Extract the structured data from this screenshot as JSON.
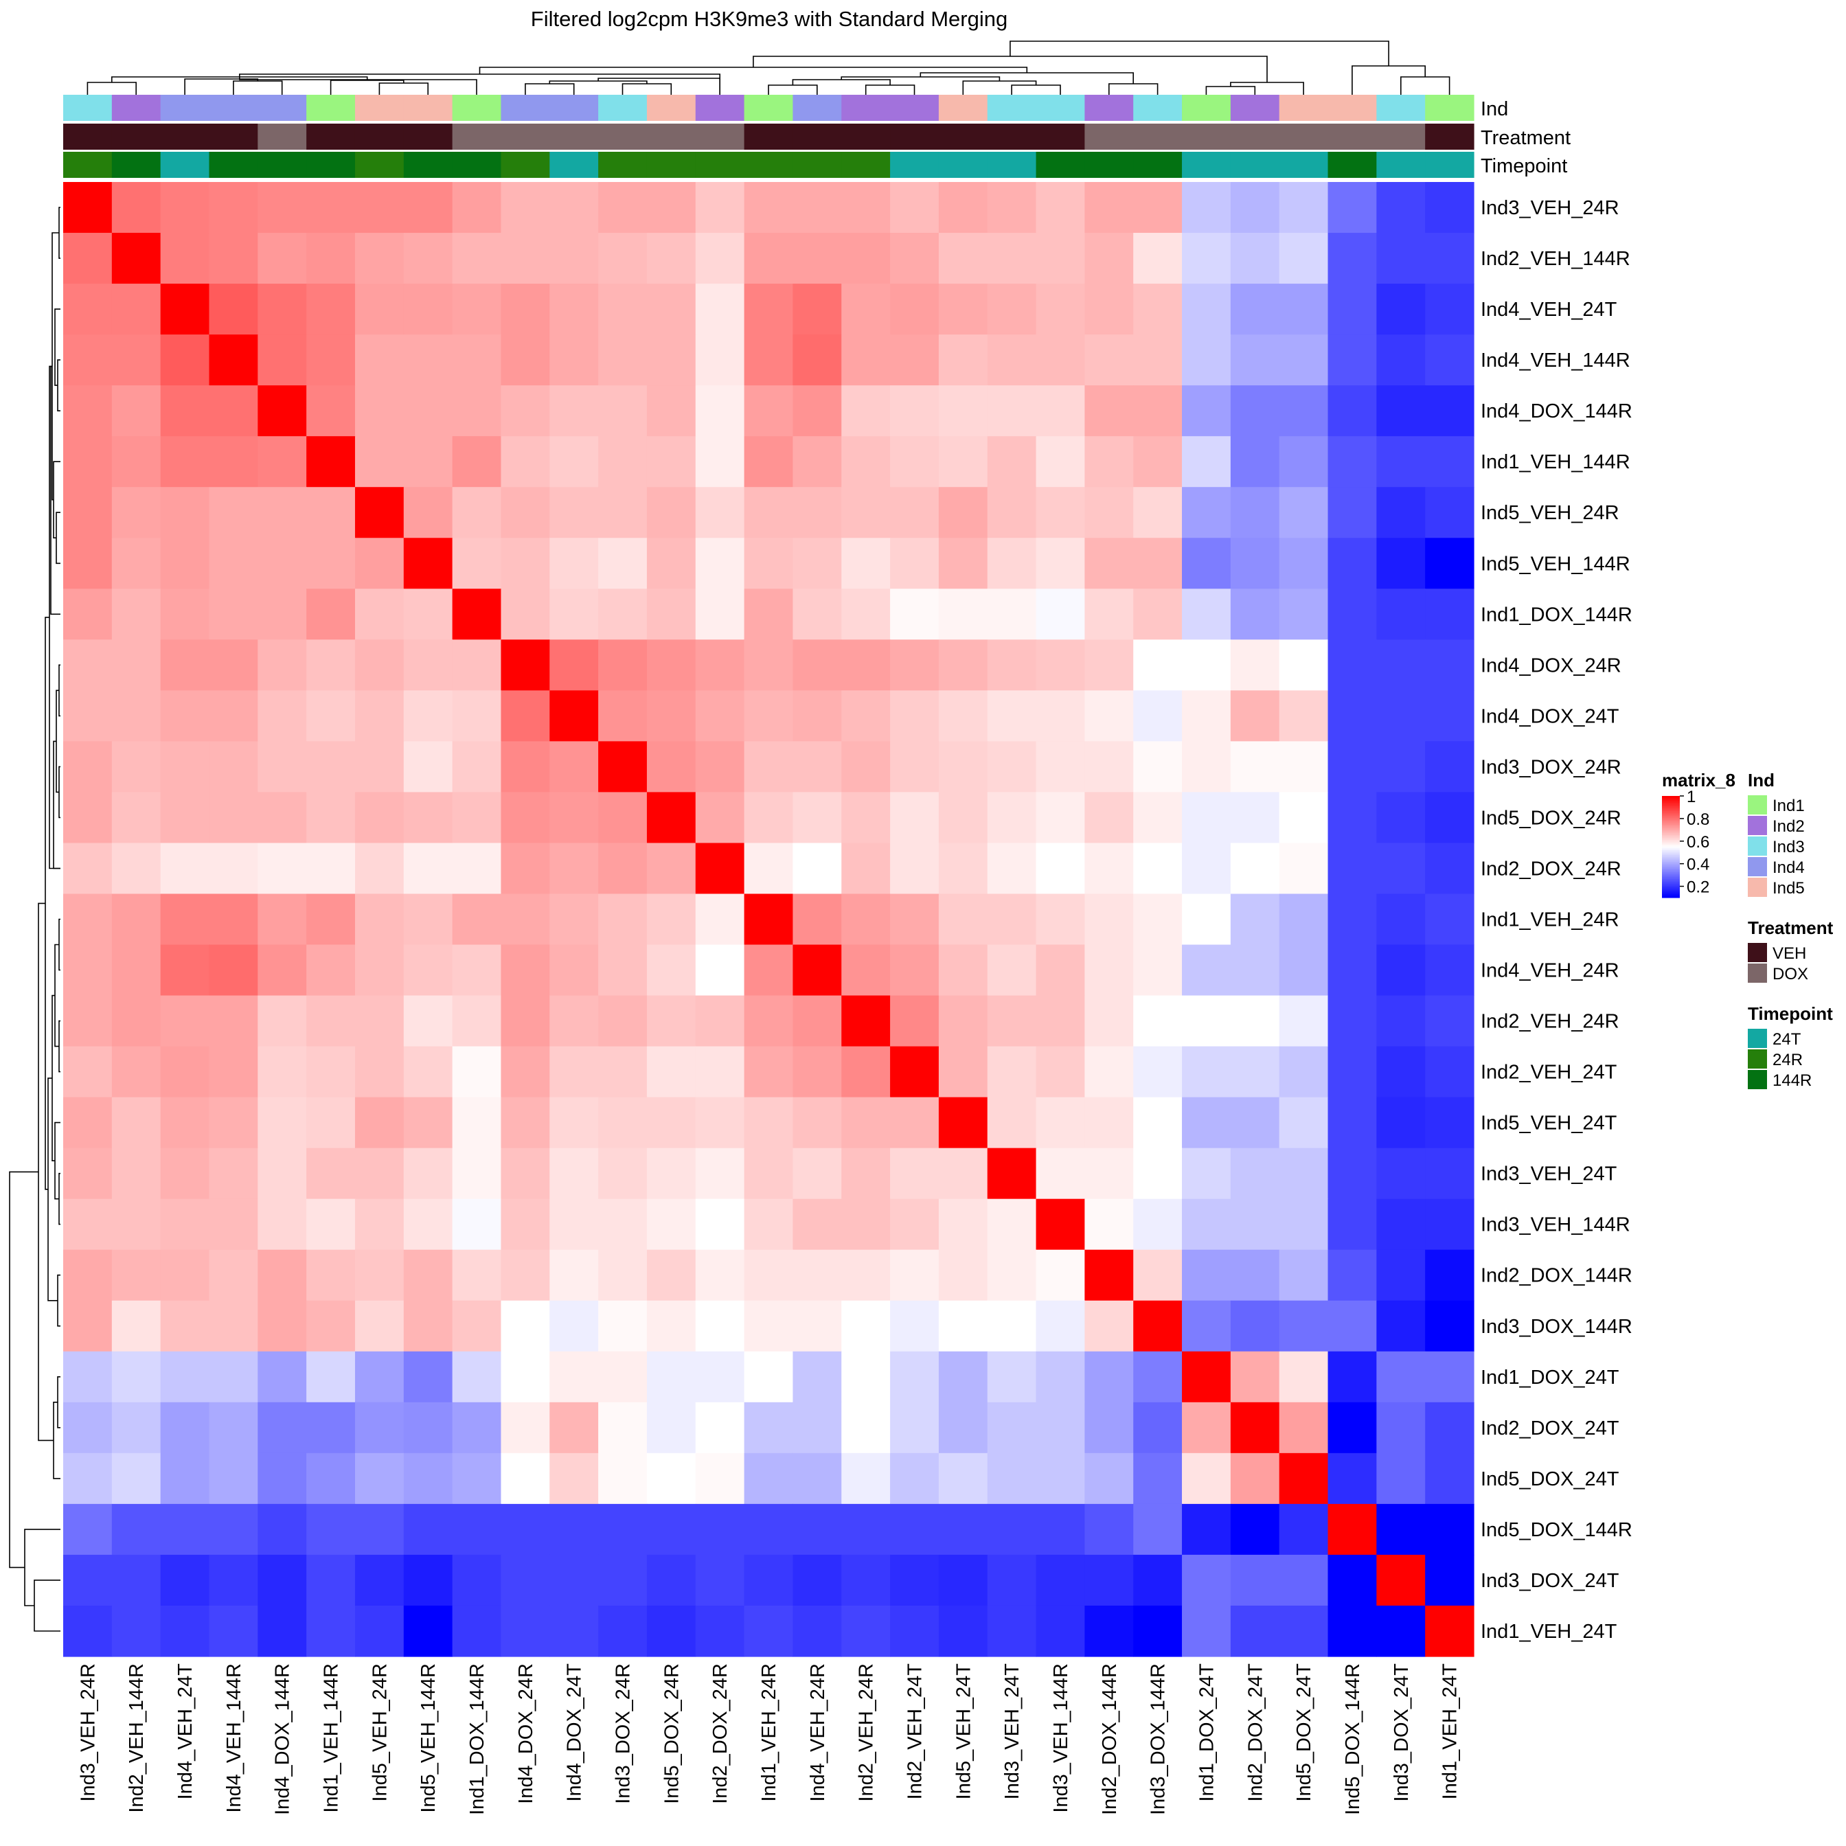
{
  "chart_data": {
    "type": "heatmap",
    "title": "Filtered log2cpm H3K9me3 with Standard Merging",
    "samples": [
      "Ind3_VEH_24R",
      "Ind2_VEH_144R",
      "Ind4_VEH_24T",
      "Ind4_VEH_144R",
      "Ind4_DOX_144R",
      "Ind1_VEH_144R",
      "Ind5_VEH_24R",
      "Ind5_VEH_144R",
      "Ind1_DOX_144R",
      "Ind4_DOX_24R",
      "Ind4_DOX_24T",
      "Ind3_DOX_24R",
      "Ind5_DOX_24R",
      "Ind2_DOX_24R",
      "Ind1_VEH_24R",
      "Ind4_VEH_24R",
      "Ind2_VEH_24R",
      "Ind2_VEH_24T",
      "Ind5_VEH_24T",
      "Ind3_VEH_24T",
      "Ind3_VEH_144R",
      "Ind2_DOX_144R",
      "Ind3_DOX_144R",
      "Ind1_DOX_24T",
      "Ind2_DOX_24T",
      "Ind5_DOX_24T",
      "Ind5_DOX_144R",
      "Ind3_DOX_24T",
      "Ind1_VEH_24T"
    ],
    "values": [
      [
        1.0,
        0.8,
        0.78,
        0.77,
        0.76,
        0.76,
        0.76,
        0.76,
        0.72,
        0.68,
        0.68,
        0.7,
        0.7,
        0.65,
        0.7,
        0.7,
        0.7,
        0.67,
        0.7,
        0.69,
        0.66,
        0.7,
        0.7,
        0.45,
        0.42,
        0.45,
        0.3,
        0.22,
        0.2
      ],
      [
        0.8,
        1.0,
        0.78,
        0.77,
        0.73,
        0.74,
        0.71,
        0.7,
        0.68,
        0.68,
        0.68,
        0.67,
        0.66,
        0.62,
        0.72,
        0.72,
        0.72,
        0.7,
        0.66,
        0.66,
        0.66,
        0.68,
        0.6,
        0.48,
        0.45,
        0.48,
        0.25,
        0.22,
        0.22
      ],
      [
        0.78,
        0.78,
        1.0,
        0.84,
        0.8,
        0.78,
        0.72,
        0.72,
        0.71,
        0.73,
        0.7,
        0.68,
        0.68,
        0.59,
        0.77,
        0.8,
        0.71,
        0.72,
        0.7,
        0.69,
        0.67,
        0.68,
        0.66,
        0.45,
        0.38,
        0.38,
        0.25,
        0.18,
        0.2
      ],
      [
        0.77,
        0.77,
        0.84,
        1.0,
        0.8,
        0.78,
        0.7,
        0.7,
        0.7,
        0.73,
        0.7,
        0.68,
        0.68,
        0.59,
        0.77,
        0.81,
        0.71,
        0.71,
        0.66,
        0.67,
        0.67,
        0.66,
        0.66,
        0.45,
        0.4,
        0.4,
        0.25,
        0.2,
        0.22
      ],
      [
        0.76,
        0.73,
        0.8,
        0.8,
        1.0,
        0.77,
        0.7,
        0.7,
        0.7,
        0.68,
        0.66,
        0.66,
        0.68,
        0.58,
        0.72,
        0.74,
        0.64,
        0.63,
        0.62,
        0.62,
        0.62,
        0.7,
        0.7,
        0.38,
        0.32,
        0.32,
        0.22,
        0.17,
        0.17
      ],
      [
        0.76,
        0.74,
        0.78,
        0.78,
        0.77,
        1.0,
        0.7,
        0.7,
        0.74,
        0.66,
        0.64,
        0.66,
        0.66,
        0.58,
        0.74,
        0.7,
        0.66,
        0.64,
        0.63,
        0.66,
        0.6,
        0.66,
        0.68,
        0.48,
        0.32,
        0.35,
        0.25,
        0.22,
        0.22
      ],
      [
        0.76,
        0.71,
        0.72,
        0.7,
        0.7,
        0.7,
        1.0,
        0.72,
        0.66,
        0.68,
        0.66,
        0.66,
        0.68,
        0.62,
        0.67,
        0.67,
        0.66,
        0.66,
        0.7,
        0.66,
        0.64,
        0.65,
        0.62,
        0.38,
        0.36,
        0.4,
        0.25,
        0.18,
        0.2
      ],
      [
        0.76,
        0.7,
        0.72,
        0.7,
        0.7,
        0.7,
        0.72,
        1.0,
        0.65,
        0.66,
        0.62,
        0.6,
        0.67,
        0.58,
        0.66,
        0.65,
        0.6,
        0.63,
        0.68,
        0.62,
        0.6,
        0.68,
        0.68,
        0.32,
        0.35,
        0.38,
        0.22,
        0.15,
        0.08
      ],
      [
        0.72,
        0.68,
        0.71,
        0.7,
        0.7,
        0.74,
        0.66,
        0.65,
        1.0,
        0.66,
        0.63,
        0.64,
        0.66,
        0.58,
        0.7,
        0.64,
        0.62,
        0.56,
        0.57,
        0.57,
        0.54,
        0.62,
        0.65,
        0.48,
        0.38,
        0.4,
        0.22,
        0.2,
        0.2
      ],
      [
        0.68,
        0.68,
        0.73,
        0.73,
        0.68,
        0.66,
        0.68,
        0.66,
        0.66,
        1.0,
        0.8,
        0.76,
        0.74,
        0.72,
        0.7,
        0.72,
        0.72,
        0.7,
        0.68,
        0.66,
        0.65,
        0.64,
        0.55,
        0.55,
        0.58,
        0.55,
        0.22,
        0.22,
        0.22
      ],
      [
        0.68,
        0.68,
        0.7,
        0.7,
        0.66,
        0.64,
        0.66,
        0.62,
        0.63,
        0.8,
        1.0,
        0.74,
        0.73,
        0.7,
        0.68,
        0.69,
        0.67,
        0.64,
        0.62,
        0.6,
        0.6,
        0.58,
        0.52,
        0.58,
        0.68,
        0.63,
        0.22,
        0.22,
        0.22
      ],
      [
        0.7,
        0.67,
        0.68,
        0.68,
        0.66,
        0.66,
        0.66,
        0.6,
        0.64,
        0.76,
        0.74,
        1.0,
        0.74,
        0.72,
        0.66,
        0.66,
        0.68,
        0.64,
        0.63,
        0.62,
        0.6,
        0.6,
        0.56,
        0.58,
        0.56,
        0.56,
        0.22,
        0.22,
        0.2
      ],
      [
        0.7,
        0.66,
        0.68,
        0.68,
        0.68,
        0.66,
        0.68,
        0.67,
        0.66,
        0.74,
        0.73,
        0.74,
        1.0,
        0.7,
        0.64,
        0.62,
        0.65,
        0.6,
        0.63,
        0.6,
        0.58,
        0.63,
        0.58,
        0.52,
        0.52,
        0.55,
        0.22,
        0.2,
        0.18
      ],
      [
        0.65,
        0.62,
        0.59,
        0.59,
        0.58,
        0.58,
        0.62,
        0.58,
        0.58,
        0.72,
        0.7,
        0.72,
        0.7,
        1.0,
        0.58,
        0.55,
        0.66,
        0.6,
        0.62,
        0.58,
        0.55,
        0.58,
        0.55,
        0.52,
        0.55,
        0.56,
        0.22,
        0.22,
        0.2
      ],
      [
        0.7,
        0.72,
        0.77,
        0.77,
        0.72,
        0.74,
        0.67,
        0.66,
        0.7,
        0.7,
        0.68,
        0.66,
        0.64,
        0.58,
        1.0,
        0.75,
        0.72,
        0.7,
        0.64,
        0.64,
        0.62,
        0.6,
        0.58,
        0.55,
        0.45,
        0.42,
        0.22,
        0.2,
        0.22
      ],
      [
        0.7,
        0.72,
        0.8,
        0.81,
        0.74,
        0.7,
        0.67,
        0.65,
        0.64,
        0.72,
        0.69,
        0.66,
        0.62,
        0.55,
        0.75,
        1.0,
        0.74,
        0.72,
        0.66,
        0.62,
        0.66,
        0.6,
        0.58,
        0.45,
        0.45,
        0.42,
        0.22,
        0.18,
        0.2
      ],
      [
        0.7,
        0.72,
        0.71,
        0.71,
        0.64,
        0.66,
        0.66,
        0.6,
        0.62,
        0.72,
        0.67,
        0.68,
        0.65,
        0.66,
        0.72,
        0.74,
        1.0,
        0.76,
        0.68,
        0.66,
        0.66,
        0.6,
        0.55,
        0.55,
        0.55,
        0.52,
        0.22,
        0.2,
        0.22
      ],
      [
        0.67,
        0.7,
        0.72,
        0.71,
        0.63,
        0.64,
        0.66,
        0.63,
        0.56,
        0.7,
        0.64,
        0.64,
        0.6,
        0.6,
        0.7,
        0.72,
        0.76,
        1.0,
        0.68,
        0.62,
        0.64,
        0.58,
        0.52,
        0.48,
        0.48,
        0.45,
        0.22,
        0.18,
        0.2
      ],
      [
        0.7,
        0.66,
        0.7,
        0.69,
        0.62,
        0.63,
        0.7,
        0.68,
        0.57,
        0.68,
        0.62,
        0.63,
        0.63,
        0.62,
        0.64,
        0.66,
        0.68,
        0.68,
        1.0,
        0.62,
        0.6,
        0.6,
        0.55,
        0.42,
        0.42,
        0.48,
        0.22,
        0.17,
        0.18
      ],
      [
        0.69,
        0.66,
        0.69,
        0.67,
        0.62,
        0.66,
        0.66,
        0.62,
        0.57,
        0.66,
        0.6,
        0.62,
        0.6,
        0.58,
        0.64,
        0.62,
        0.66,
        0.62,
        0.62,
        1.0,
        0.58,
        0.58,
        0.55,
        0.48,
        0.45,
        0.45,
        0.22,
        0.2,
        0.2
      ],
      [
        0.66,
        0.66,
        0.67,
        0.67,
        0.62,
        0.6,
        0.64,
        0.6,
        0.54,
        0.65,
        0.6,
        0.6,
        0.58,
        0.55,
        0.62,
        0.66,
        0.66,
        0.64,
        0.6,
        0.58,
        1.0,
        0.56,
        0.52,
        0.45,
        0.45,
        0.45,
        0.22,
        0.18,
        0.18
      ],
      [
        0.7,
        0.68,
        0.68,
        0.66,
        0.7,
        0.66,
        0.65,
        0.68,
        0.62,
        0.64,
        0.58,
        0.6,
        0.63,
        0.58,
        0.6,
        0.6,
        0.6,
        0.58,
        0.6,
        0.58,
        0.56,
        1.0,
        0.62,
        0.38,
        0.38,
        0.42,
        0.25,
        0.18,
        0.12
      ],
      [
        0.7,
        0.6,
        0.66,
        0.66,
        0.7,
        0.68,
        0.62,
        0.68,
        0.65,
        0.55,
        0.52,
        0.56,
        0.58,
        0.55,
        0.58,
        0.58,
        0.55,
        0.52,
        0.55,
        0.55,
        0.52,
        0.62,
        1.0,
        0.32,
        0.28,
        0.3,
        0.3,
        0.15,
        0.08
      ],
      [
        0.45,
        0.48,
        0.45,
        0.45,
        0.38,
        0.48,
        0.38,
        0.32,
        0.48,
        0.55,
        0.58,
        0.58,
        0.52,
        0.52,
        0.55,
        0.45,
        0.55,
        0.48,
        0.42,
        0.48,
        0.45,
        0.38,
        0.32,
        1.0,
        0.7,
        0.6,
        0.15,
        0.3,
        0.3
      ],
      [
        0.42,
        0.45,
        0.38,
        0.4,
        0.32,
        0.32,
        0.36,
        0.35,
        0.38,
        0.58,
        0.68,
        0.56,
        0.52,
        0.55,
        0.45,
        0.45,
        0.55,
        0.48,
        0.42,
        0.45,
        0.45,
        0.38,
        0.28,
        0.7,
        1.0,
        0.72,
        0.08,
        0.28,
        0.22
      ],
      [
        0.45,
        0.48,
        0.38,
        0.4,
        0.32,
        0.35,
        0.4,
        0.38,
        0.4,
        0.55,
        0.63,
        0.56,
        0.55,
        0.56,
        0.42,
        0.42,
        0.52,
        0.45,
        0.48,
        0.45,
        0.45,
        0.42,
        0.3,
        0.6,
        0.72,
        1.0,
        0.18,
        0.28,
        0.22
      ],
      [
        0.3,
        0.25,
        0.25,
        0.25,
        0.22,
        0.25,
        0.25,
        0.22,
        0.22,
        0.22,
        0.22,
        0.22,
        0.22,
        0.22,
        0.22,
        0.22,
        0.22,
        0.22,
        0.22,
        0.22,
        0.22,
        0.25,
        0.3,
        0.15,
        0.08,
        0.18,
        1.0,
        0.08,
        0.08
      ],
      [
        0.22,
        0.22,
        0.18,
        0.2,
        0.17,
        0.22,
        0.18,
        0.15,
        0.2,
        0.22,
        0.22,
        0.22,
        0.2,
        0.22,
        0.2,
        0.18,
        0.2,
        0.18,
        0.17,
        0.2,
        0.18,
        0.18,
        0.15,
        0.3,
        0.28,
        0.28,
        0.08,
        1.0,
        0.08
      ],
      [
        0.2,
        0.22,
        0.2,
        0.22,
        0.17,
        0.22,
        0.2,
        0.08,
        0.2,
        0.22,
        0.22,
        0.2,
        0.18,
        0.2,
        0.22,
        0.2,
        0.22,
        0.2,
        0.18,
        0.2,
        0.18,
        0.12,
        0.08,
        0.3,
        0.22,
        0.22,
        0.08,
        0.08,
        1.0
      ]
    ],
    "col_annotations": {
      "Ind": [
        "Ind3",
        "Ind2",
        "Ind4",
        "Ind4",
        "Ind4",
        "Ind1",
        "Ind5",
        "Ind5",
        "Ind1",
        "Ind4",
        "Ind4",
        "Ind3",
        "Ind5",
        "Ind2",
        "Ind1",
        "Ind4",
        "Ind2",
        "Ind2",
        "Ind5",
        "Ind3",
        "Ind3",
        "Ind2",
        "Ind3",
        "Ind1",
        "Ind2",
        "Ind5",
        "Ind5",
        "Ind3",
        "Ind1"
      ],
      "Treatment": [
        "VEH",
        "VEH",
        "VEH",
        "VEH",
        "DOX",
        "VEH",
        "VEH",
        "VEH",
        "DOX",
        "DOX",
        "DOX",
        "DOX",
        "DOX",
        "DOX",
        "VEH",
        "VEH",
        "VEH",
        "VEH",
        "VEH",
        "VEH",
        "VEH",
        "DOX",
        "DOX",
        "DOX",
        "DOX",
        "DOX",
        "DOX",
        "DOX",
        "VEH"
      ],
      "Timepoint": [
        "24R",
        "144R",
        "24T",
        "144R",
        "144R",
        "144R",
        "24R",
        "144R",
        "144R",
        "24R",
        "24T",
        "24R",
        "24R",
        "24R",
        "24R",
        "24R",
        "24R",
        "24T",
        "24T",
        "24T",
        "144R",
        "144R",
        "144R",
        "24T",
        "24T",
        "24T",
        "144R",
        "24T",
        "24T"
      ]
    },
    "annotation_names": [
      "Ind",
      "Treatment",
      "Timepoint"
    ],
    "legend": {
      "scale_title": "matrix_8",
      "scale_ticks": [
        "1",
        "0.8",
        "0.6",
        "0.4",
        "0.2"
      ],
      "scale_range": [
        0.1,
        1.0
      ],
      "scale_colors": {
        "low": "#0000ff",
        "mid": "#ffffff",
        "high": "#ff0000"
      },
      "groups": [
        {
          "title": "Ind",
          "items": [
            {
              "label": "Ind1",
              "color": "#9AF57F"
            },
            {
              "label": "Ind2",
              "color": "#A272DC"
            },
            {
              "label": "Ind3",
              "color": "#80E0EA"
            },
            {
              "label": "Ind4",
              "color": "#9098EE"
            },
            {
              "label": "Ind5",
              "color": "#F7B9AC"
            }
          ]
        },
        {
          "title": "Treatment",
          "items": [
            {
              "label": "VEH",
              "color": "#3E1019"
            },
            {
              "label": "DOX",
              "color": "#7C6668"
            }
          ]
        },
        {
          "title": "Timepoint",
          "items": [
            {
              "label": "24T",
              "color": "#13A8A2"
            },
            {
              "label": "24R",
              "color": "#257F0B"
            },
            {
              "label": "144R",
              "color": "#037212"
            }
          ]
        }
      ]
    },
    "dendrogram": "hierarchical clustering on rows and columns"
  }
}
